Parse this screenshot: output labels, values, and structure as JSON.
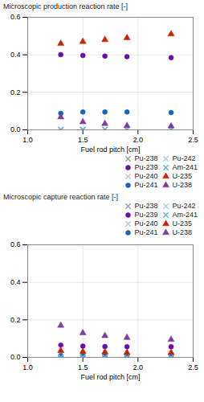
{
  "chart_data": [
    {
      "type": "scatter",
      "xlabel": "Fuel rod pitch [cm]",
      "ylabel": "Microscopic production reaction rate [-]",
      "xlim": [
        1.0,
        2.5
      ],
      "ylim": [
        0.0,
        0.6
      ],
      "xticks": [
        {
          "value": 1.0,
          "label": "1.0"
        },
        1.5,
        {
          "value": 2.0,
          "label": "2.0"
        },
        2.5
      ],
      "yticks": [
        {
          "value": 0.0,
          "label": "0.0"
        },
        0.2,
        0.4,
        0.6
      ],
      "grid": true,
      "legend": "lower right",
      "x": [
        1.3,
        1.5,
        1.7,
        1.9,
        2.3
      ],
      "series": [
        {
          "name": "Pu-238",
          "color": "#999999",
          "marker": "x",
          "values": [
            0.001,
            0.001,
            0.001,
            0.001,
            0.001
          ]
        },
        {
          "name": "Pu-239",
          "color": "#6a0dad",
          "marker": "circle",
          "values": [
            0.401,
            0.396,
            0.393,
            0.39,
            0.385
          ]
        },
        {
          "name": "Pu-240",
          "color": "#ccbbcc",
          "marker": "x",
          "values": [
            0.001,
            0.001,
            0.001,
            0.001,
            0.001
          ]
        },
        {
          "name": "Pu-241",
          "color": "#1565c0",
          "marker": "circle",
          "values": [
            0.088,
            0.095,
            0.095,
            0.095,
            0.092
          ]
        },
        {
          "name": "Pu-242",
          "color": "#aaccdd",
          "marker": "x",
          "values": [
            0.001,
            0.001,
            0.001,
            0.001,
            0.001
          ]
        },
        {
          "name": "Am-241",
          "color": "#4db8e8",
          "marker": "x",
          "values": [
            0.001,
            0.001,
            0.001,
            0.001,
            0.001
          ]
        },
        {
          "name": "U-235",
          "color": "#cc2200",
          "marker": "triangle",
          "values": [
            0.46,
            0.47,
            0.48,
            0.49,
            0.51
          ]
        },
        {
          "name": "U-238",
          "color": "#7b3f9e",
          "marker": "triangle",
          "values": [
            0.068,
            0.042,
            0.033,
            0.022,
            0.02
          ]
        }
      ]
    },
    {
      "type": "scatter",
      "xlabel": "Fuel rod pitch [cm]",
      "ylabel": "Microscopic capture reaction rate [-]",
      "xlim": [
        1.0,
        2.5
      ],
      "ylim": [
        0.0,
        0.6
      ],
      "xticks": [
        {
          "value": 1.0,
          "label": "1.0"
        },
        1.5,
        {
          "value": 2.0,
          "label": "2.0"
        },
        2.5
      ],
      "yticks": [
        {
          "value": 0.0,
          "label": "0.0"
        },
        0.2,
        0.4,
        0.6
      ],
      "grid": true,
      "legend": "upper right",
      "x": [
        1.3,
        1.5,
        1.7,
        1.9,
        2.3
      ],
      "series": [
        {
          "name": "Pu-238",
          "color": "#999999",
          "marker": "x",
          "values": [
            0.001,
            0.001,
            0.001,
            0.001,
            0.001
          ]
        },
        {
          "name": "Pu-239",
          "color": "#6a0dad",
          "marker": "circle",
          "values": [
            0.065,
            0.06,
            0.058,
            0.057,
            0.057
          ]
        },
        {
          "name": "Pu-240",
          "color": "#ccbbcc",
          "marker": "x",
          "values": [
            0.045,
            0.001,
            0.001,
            0.001,
            0.001
          ]
        },
        {
          "name": "Pu-241",
          "color": "#1565c0",
          "marker": "circle",
          "values": [
            0.01,
            0.01,
            0.01,
            0.01,
            0.01
          ]
        },
        {
          "name": "Pu-242",
          "color": "#aaccdd",
          "marker": "x",
          "values": [
            0.001,
            0.001,
            0.001,
            0.001,
            0.001
          ]
        },
        {
          "name": "Am-241",
          "color": "#4db8e8",
          "marker": "x",
          "values": [
            0.001,
            0.001,
            0.001,
            0.001,
            0.001
          ]
        },
        {
          "name": "U-235",
          "color": "#cc2200",
          "marker": "triangle",
          "values": [
            0.035,
            0.03,
            0.028,
            0.025,
            0.025
          ]
        },
        {
          "name": "U-238",
          "color": "#7b3f9e",
          "marker": "triangle",
          "values": [
            0.17,
            0.13,
            0.115,
            0.105,
            0.095
          ]
        }
      ]
    }
  ]
}
